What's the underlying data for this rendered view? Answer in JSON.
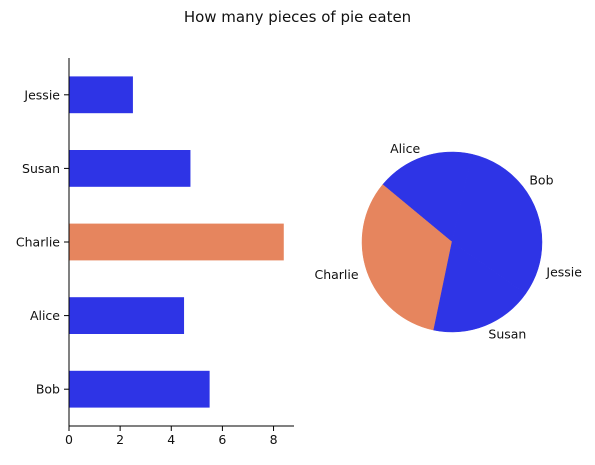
{
  "chart_data": [
    {
      "type": "bar",
      "orientation": "horizontal",
      "title": "How many pieces of pie eaten",
      "categories": [
        "Bob",
        "Alice",
        "Charlie",
        "Susan",
        "Jessie"
      ],
      "values": [
        5.5,
        4.5,
        8.4,
        4.75,
        2.5
      ],
      "xlabel": "",
      "ylabel": "",
      "xlim": [
        0,
        8.8
      ],
      "xticks": [
        0,
        2,
        4,
        6,
        8
      ],
      "grid": false,
      "colors": [
        "#2e34e6",
        "#2e34e6",
        "#e6855e",
        "#2e34e6",
        "#2e34e6"
      ]
    },
    {
      "type": "pie",
      "labels": [
        "Bob",
        "Alice",
        "Charlie",
        "Susan",
        "Jessie"
      ],
      "values": [
        5.5,
        4.5,
        8.4,
        4.75,
        2.5
      ],
      "colors": [
        "#2e34e6",
        "#2e34e6",
        "#e6855e",
        "#2e34e6",
        "#2e34e6"
      ],
      "start_angle_deg": 0,
      "direction": "counterclockwise"
    }
  ]
}
